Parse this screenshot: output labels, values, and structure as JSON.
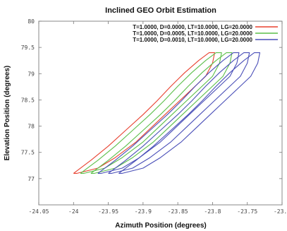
{
  "chart_data": {
    "type": "line",
    "title": "Inclined GEO Orbit Estimation",
    "xlabel": "Azimuth Position (degrees)",
    "ylabel": "Elevation Position (degrees)",
    "xlim": [
      -24.05,
      -23.7
    ],
    "ylim": [
      76.5,
      80
    ],
    "x_ticks": [
      -24.05,
      -24,
      -23.95,
      -23.9,
      -23.85,
      -23.8,
      -23.75,
      -23.7
    ],
    "x_tick_labels": [
      "-24.05",
      "-24",
      "-23.95",
      "-23.9",
      "-23.85",
      "-23.8",
      "-23.75",
      "-23.7"
    ],
    "y_ticks": [
      77,
      77.5,
      78,
      78.5,
      79,
      79.5,
      80
    ],
    "y_tick_labels": [
      "77",
      "77.5",
      "78",
      "78.5",
      "79",
      "79.5",
      "80"
    ],
    "grid": false,
    "legend_position": "top-right",
    "series": [
      {
        "name": "T=1.0000, D=0.0000, LT=10.0000, LG=20.0000",
        "color": "#e8412f",
        "loops": [
          {
            "left_x": [
              -24.0,
              -23.975,
              -23.95,
              -23.925,
              -23.9,
              -23.88,
              -23.86,
              -23.84,
              -23.82,
              -23.805
            ],
            "left_y": [
              77.1,
              77.35,
              77.62,
              77.92,
              78.22,
              78.48,
              78.76,
              79.02,
              79.25,
              79.4
            ],
            "right_x": [
              -23.797,
              -23.8,
              -23.81,
              -23.83,
              -23.85,
              -23.87,
              -23.89,
              -23.91,
              -23.94,
              -23.965,
              -23.995
            ],
            "right_y": [
              79.4,
              79.2,
              78.95,
              78.7,
              78.45,
              78.2,
              77.95,
              77.7,
              77.4,
              77.2,
              77.1
            ]
          }
        ]
      },
      {
        "name": "T=1.0000, D=0.0005, LT=10.0000, LG=20.0000",
        "color": "#5cbf4a",
        "loops": [
          {
            "left_x": [
              -23.99,
              -23.965,
              -23.94,
              -23.915,
              -23.89,
              -23.87,
              -23.85,
              -23.83,
              -23.81,
              -23.795
            ],
            "left_y": [
              77.1,
              77.35,
              77.62,
              77.92,
              78.22,
              78.48,
              78.76,
              79.02,
              79.25,
              79.4
            ],
            "right_x": [
              -23.787,
              -23.79,
              -23.8,
              -23.82,
              -23.84,
              -23.86,
              -23.88,
              -23.9,
              -23.93,
              -23.955,
              -23.985
            ],
            "right_y": [
              79.4,
              79.2,
              78.95,
              78.7,
              78.45,
              78.2,
              77.95,
              77.7,
              77.4,
              77.2,
              77.1
            ]
          },
          {
            "left_x": [
              -23.975,
              -23.95,
              -23.925,
              -23.9,
              -23.875,
              -23.855,
              -23.835,
              -23.815,
              -23.795,
              -23.78
            ],
            "left_y": [
              77.1,
              77.35,
              77.62,
              77.92,
              78.22,
              78.48,
              78.76,
              79.02,
              79.25,
              79.4
            ],
            "right_x": [
              -23.772,
              -23.775,
              -23.785,
              -23.805,
              -23.825,
              -23.845,
              -23.865,
              -23.885,
              -23.915,
              -23.94,
              -23.97
            ],
            "right_y": [
              79.4,
              79.2,
              78.95,
              78.7,
              78.45,
              78.2,
              77.95,
              77.7,
              77.4,
              77.2,
              77.1
            ]
          }
        ]
      },
      {
        "name": "T=1.0000, D=0.0010, LT=10.0000, LG=20.0000",
        "color": "#4a4fb8",
        "loops": [
          {
            "left_x": [
              -23.965,
              -23.94,
              -23.915,
              -23.89,
              -23.865,
              -23.845,
              -23.825,
              -23.805,
              -23.785,
              -23.77
            ],
            "left_y": [
              77.1,
              77.35,
              77.62,
              77.92,
              78.22,
              78.48,
              78.76,
              79.02,
              79.25,
              79.4
            ],
            "right_x": [
              -23.762,
              -23.765,
              -23.775,
              -23.795,
              -23.815,
              -23.835,
              -23.855,
              -23.875,
              -23.905,
              -23.93,
              -23.96
            ],
            "right_y": [
              79.4,
              79.2,
              78.95,
              78.7,
              78.45,
              78.2,
              77.95,
              77.7,
              77.4,
              77.2,
              77.1
            ]
          },
          {
            "left_x": [
              -23.95,
              -23.925,
              -23.9,
              -23.875,
              -23.85,
              -23.83,
              -23.81,
              -23.79,
              -23.77,
              -23.755
            ],
            "left_y": [
              77.1,
              77.35,
              77.62,
              77.92,
              78.22,
              78.48,
              78.76,
              79.02,
              79.25,
              79.4
            ],
            "right_x": [
              -23.747,
              -23.75,
              -23.76,
              -23.78,
              -23.8,
              -23.82,
              -23.84,
              -23.86,
              -23.89,
              -23.915,
              -23.945
            ],
            "right_y": [
              79.4,
              79.2,
              78.95,
              78.7,
              78.45,
              78.2,
              77.95,
              77.7,
              77.4,
              77.2,
              77.1
            ]
          },
          {
            "left_x": [
              -23.935,
              -23.91,
              -23.885,
              -23.86,
              -23.835,
              -23.815,
              -23.795,
              -23.775,
              -23.755,
              -23.74
            ],
            "left_y": [
              77.1,
              77.35,
              77.62,
              77.92,
              78.22,
              78.48,
              78.76,
              79.02,
              79.25,
              79.4
            ],
            "right_x": [
              -23.732,
              -23.735,
              -23.745,
              -23.765,
              -23.785,
              -23.805,
              -23.825,
              -23.845,
              -23.875,
              -23.9,
              -23.93
            ],
            "right_y": [
              79.4,
              79.2,
              78.95,
              78.7,
              78.45,
              78.2,
              77.95,
              77.7,
              77.4,
              77.2,
              77.1
            ]
          }
        ]
      }
    ]
  }
}
